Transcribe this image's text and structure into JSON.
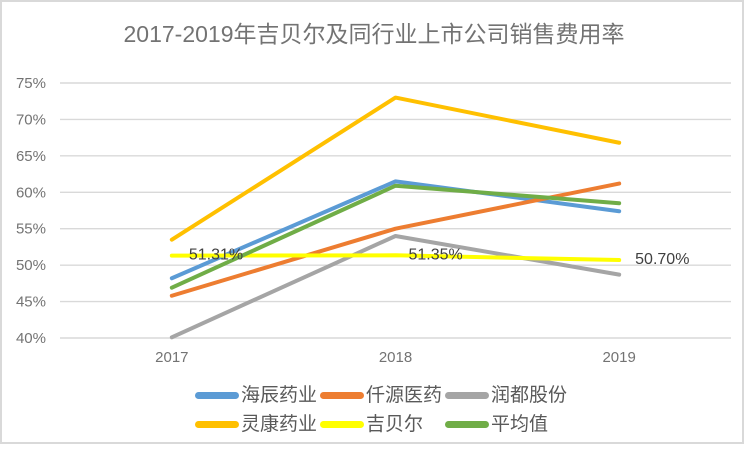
{
  "chart_data": {
    "type": "line",
    "title": "2017-2019年吉贝尔及同行业上市公司销售费用率",
    "categories": [
      "2017",
      "2018",
      "2019"
    ],
    "series": [
      {
        "name": "海辰药业",
        "color": "#5B9BD5",
        "values": [
          48.2,
          61.5,
          57.4
        ]
      },
      {
        "name": "仟源医药",
        "color": "#ED7D31",
        "values": [
          45.8,
          55.0,
          61.2
        ]
      },
      {
        "name": "润都股份",
        "color": "#A5A5A5",
        "values": [
          40.1,
          54.0,
          48.7
        ]
      },
      {
        "name": "灵康药业",
        "color": "#FFC000",
        "values": [
          53.5,
          73.0,
          66.8
        ]
      },
      {
        "name": "吉贝尔",
        "color": "#FFFF00",
        "values": [
          51.31,
          51.35,
          50.7
        ],
        "data_labels": [
          "51.31%",
          "51.35%",
          "50.70%"
        ]
      },
      {
        "name": "平均值",
        "color": "#70AD47",
        "values": [
          46.9,
          60.9,
          58.5
        ]
      }
    ],
    "ylim": [
      40,
      75
    ],
    "ytick_step": 5,
    "ytick_labels": [
      "40%",
      "45%",
      "50%",
      "55%",
      "60%",
      "65%",
      "70%",
      "75%"
    ],
    "xtick_labels": [
      "2017",
      "2018",
      "2019"
    ],
    "grid": true,
    "legend_position": "bottom",
    "legend_rows": [
      [
        "海辰药业",
        "仟源医药",
        "润都股份"
      ],
      [
        "灵康药业",
        "吉贝尔",
        "平均值"
      ]
    ]
  },
  "colors": {
    "title_text": "#737373",
    "tick_text": "#737373",
    "data_label_text": "#404040",
    "gridline": "#D9D9D9",
    "frame_border": "#D9D9D9",
    "legend_text": "#595959",
    "background": "#FFFFFF"
  }
}
